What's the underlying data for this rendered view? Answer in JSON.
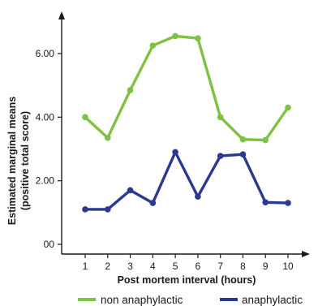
{
  "chart_data": {
    "type": "line",
    "x": [
      1,
      2,
      3,
      4,
      5,
      6,
      7,
      8,
      9,
      10
    ],
    "xticks": [
      "1",
      "2",
      "3",
      "4",
      "5",
      "6",
      "7",
      "8",
      "9",
      "10"
    ],
    "yticks": [
      {
        "value": 0,
        "label": "00"
      },
      {
        "value": 2,
        "label": "2.00"
      },
      {
        "value": 4,
        "label": "4.00"
      },
      {
        "value": 6,
        "label": "6.00"
      }
    ],
    "xlabel": "Post mortem interval (hours)",
    "ylabel_line1": "Estimated marginal means",
    "ylabel_line2": "(positive total score)",
    "ylim": [
      0,
      7
    ],
    "xlim": [
      0.5,
      10.5
    ],
    "grid": false,
    "legend_position": "bottom",
    "series": [
      {
        "name": "non anaphylactic",
        "color": "#7dc242",
        "values": [
          4.0,
          3.35,
          4.85,
          6.25,
          6.55,
          6.48,
          4.0,
          3.3,
          3.28,
          4.3
        ]
      },
      {
        "name": "anaphylactic",
        "color": "#2b3990",
        "values": [
          1.1,
          1.1,
          1.7,
          1.3,
          2.9,
          1.5,
          2.78,
          2.83,
          1.32,
          1.3
        ]
      }
    ]
  }
}
